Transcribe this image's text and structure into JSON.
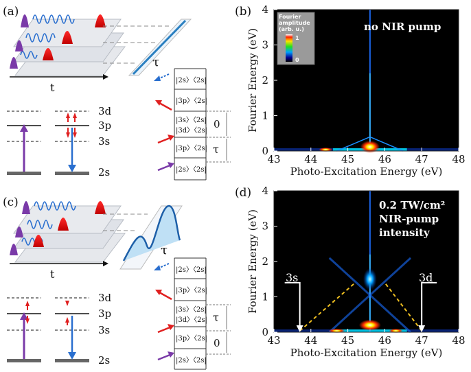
{
  "panels": {
    "a": {
      "label": "(a)",
      "time_axis": "t",
      "delay": "τ",
      "levels": [
        "3d",
        "3p",
        "3s",
        "2s"
      ],
      "density_matrix": [
        "|2s〉〈2s|",
        "|3p〉〈2s|",
        "|3s〉〈2s|",
        "|3d〉〈2s|",
        "|3p〉〈2s|",
        "|2s〉〈2s|"
      ],
      "brackets": [
        "0",
        "τ"
      ]
    },
    "b": {
      "label": "(b)",
      "annotation": "no NIR pump",
      "colorbar_title_1": "Fourier",
      "colorbar_title_2": "amplitude",
      "colorbar_title_3": "(arb. u.)",
      "colorbar_max": "1",
      "colorbar_min": "0"
    },
    "c": {
      "label": "(c)",
      "time_axis": "t",
      "delay": "τ",
      "levels": [
        "3d",
        "3p",
        "3s",
        "2s"
      ],
      "density_matrix": [
        "|2s〉〈2s|",
        "|3p〉〈2s|",
        "|3s〉〈2s|",
        "|3d〉〈2s|",
        "|3p〉〈2s|",
        "|2s〉〈2s|"
      ],
      "brackets": [
        "τ",
        "0"
      ]
    },
    "d": {
      "label": "(d)",
      "annotation_1": "0.2 TW/cm²",
      "annotation_2": "NIR-pump",
      "annotation_3": "intensity",
      "marker_left": "3s",
      "marker_right": "3d"
    }
  },
  "chart_data": [
    {
      "type": "heatmap",
      "panel": "b",
      "xlabel": "Photo-Excitation Energy (eV)",
      "ylabel": "Fourier Energy  (eV)",
      "xlim": [
        43,
        48
      ],
      "ylim": [
        0,
        4
      ],
      "x_ticks": [
        "43",
        "44",
        "45",
        "46",
        "47",
        "48"
      ],
      "y_ticks": [
        "0",
        "1",
        "2",
        "3",
        "4"
      ],
      "features": {
        "resonance_x": 45.6,
        "v_peak_fourier": 0.4,
        "baseline": 0
      }
    },
    {
      "type": "heatmap",
      "panel": "d",
      "xlabel": "Photo-Excitation Energy (eV)",
      "ylabel": "Fourier Energy  (eV)",
      "xlim": [
        43,
        48
      ],
      "ylim": [
        0,
        4
      ],
      "x_ticks": [
        "43",
        "44",
        "45",
        "46",
        "47",
        "48"
      ],
      "y_ticks": [
        "0",
        "1",
        "2",
        "3",
        "4"
      ],
      "features": {
        "resonance_x": 45.6,
        "crossing_fourier": 1.5,
        "marker_3s_x": 43.7,
        "marker_3d_x": 47.0
      }
    }
  ]
}
